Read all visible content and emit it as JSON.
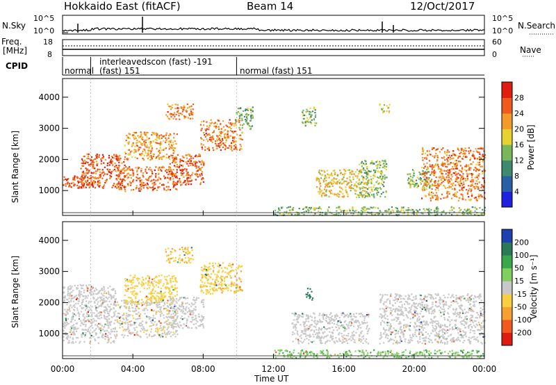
{
  "header": {
    "title": "Hokkaido East (fitACF)",
    "beam": "Beam 14",
    "date": "12/Oct/2017"
  },
  "nsky": {
    "label": "N.Sky",
    "ticks": [
      "10^5",
      "10^0"
    ]
  },
  "nsearch": {
    "label": "N.Search",
    "ticks": [
      "10^5",
      "10^0"
    ]
  },
  "freq": {
    "label": "Freq.",
    "unit": "[MHz]",
    "ticks": [
      "18",
      "8"
    ]
  },
  "nave": {
    "label": "Nave",
    "ticks": [
      "60",
      "0"
    ]
  },
  "cpid": {
    "label": "CPID",
    "segments": [
      {
        "line1": "normal",
        "line2": "",
        "start": 0.0,
        "end": 1.6
      },
      {
        "line1": "interleavedscon (fast) -191",
        "line2": "(fast) 151",
        "start": 1.6,
        "end": 9.9
      },
      {
        "line1": "",
        "line2": "normal (fast) 151",
        "start": 9.9,
        "end": 24.0
      }
    ]
  },
  "power_colorbar": {
    "label": "Power [dB]",
    "ticks": [
      "28",
      "24",
      "20",
      "16",
      "12",
      "8",
      "4"
    ],
    "colors": [
      "#1e22e0",
      "#2a5fa8",
      "#3f8a6e",
      "#78b85a",
      "#e8d232",
      "#f29a2a",
      "#ef5b1c",
      "#e01e10"
    ]
  },
  "velocity_colorbar": {
    "label": "Velocity [m s⁻¹]",
    "ticks": [
      "200",
      "100",
      "50",
      "15",
      "-15",
      "-50",
      "-100",
      "-200"
    ],
    "colors": [
      "#dd1a14",
      "#f05a20",
      "#f5a030",
      "#f7cf40",
      "#c8c8c8",
      "#80d060",
      "#3aa84a",
      "#2a7a5a",
      "#1e40b0"
    ]
  },
  "chart_data": [
    {
      "type": "heatmap",
      "title": "Power",
      "xlabel": "Time UT",
      "ylabel": "Slant Range [km]",
      "xlim": [
        0,
        24
      ],
      "ylim": [
        200,
        4600
      ],
      "x_ticks": [
        "00:00",
        "04:00",
        "08:00",
        "12:00",
        "16:00",
        "20:00",
        "00:00"
      ],
      "y_ticks": [
        "1000",
        "2000",
        "3000",
        "4000"
      ],
      "regions": [
        {
          "x": [
            0.0,
            2.0
          ],
          "y": [
            1100,
            1500
          ],
          "v": 27
        },
        {
          "x": [
            1.0,
            3.5
          ],
          "y": [
            1100,
            2200
          ],
          "v": 26
        },
        {
          "x": [
            3.0,
            6.5
          ],
          "y": [
            1000,
            1800
          ],
          "v": 25
        },
        {
          "x": [
            3.5,
            6.5
          ],
          "y": [
            2000,
            2900
          ],
          "v": 22
        },
        {
          "x": [
            5.8,
            7.4
          ],
          "y": [
            3300,
            3800
          ],
          "v": 24
        },
        {
          "x": [
            6.0,
            8.0
          ],
          "y": [
            1200,
            2200
          ],
          "v": 26
        },
        {
          "x": [
            7.8,
            10.2
          ],
          "y": [
            2300,
            3300
          ],
          "v": 24
        },
        {
          "x": [
            9.8,
            10.8
          ],
          "y": [
            3000,
            3700
          ],
          "v": 13
        },
        {
          "x": [
            13.6,
            14.4
          ],
          "y": [
            3100,
            3700
          ],
          "v": 14
        },
        {
          "x": [
            14.4,
            17.4
          ],
          "y": [
            800,
            1700
          ],
          "v": 19
        },
        {
          "x": [
            16.8,
            18.4
          ],
          "y": [
            800,
            2000
          ],
          "v": 14
        },
        {
          "x": [
            18.0,
            18.6
          ],
          "y": [
            3500,
            3800
          ],
          "v": 16
        },
        {
          "x": [
            19.6,
            21.0
          ],
          "y": [
            1100,
            1700
          ],
          "v": 14
        },
        {
          "x": [
            20.4,
            24.0
          ],
          "y": [
            700,
            2400
          ],
          "v": 24
        },
        {
          "x": [
            12.0,
            24.0
          ],
          "y": [
            220,
            500
          ],
          "v": 14
        }
      ]
    },
    {
      "type": "heatmap",
      "title": "Velocity",
      "xlabel": "Time UT",
      "ylabel": "Slant Range [km]",
      "xlim": [
        0,
        24
      ],
      "ylim": [
        200,
        4600
      ],
      "x_ticks": [
        "00:00",
        "04:00",
        "08:00",
        "12:00",
        "16:00",
        "20:00",
        "00:00"
      ],
      "y_ticks": [
        "1000",
        "2000",
        "3000",
        "4000"
      ],
      "regions": [
        {
          "x": [
            0.0,
            3.0
          ],
          "y": [
            700,
            2600
          ],
          "v": 0
        },
        {
          "x": [
            3.0,
            6.5
          ],
          "y": [
            900,
            2100
          ],
          "v": -5
        },
        {
          "x": [
            3.5,
            6.5
          ],
          "y": [
            2000,
            2900
          ],
          "v": -35
        },
        {
          "x": [
            5.8,
            7.4
          ],
          "y": [
            3300,
            3800
          ],
          "v": -45
        },
        {
          "x": [
            6.0,
            8.0
          ],
          "y": [
            1200,
            2200
          ],
          "v": 0
        },
        {
          "x": [
            7.8,
            10.2
          ],
          "y": [
            2300,
            3300
          ],
          "v": -40
        },
        {
          "x": [
            13.8,
            14.2
          ],
          "y": [
            2100,
            2500
          ],
          "v": 150
        },
        {
          "x": [
            13.0,
            17.4
          ],
          "y": [
            700,
            1700
          ],
          "v": 0
        },
        {
          "x": [
            18.0,
            24.0
          ],
          "y": [
            700,
            2300
          ],
          "v": 0
        },
        {
          "x": [
            12.0,
            24.0
          ],
          "y": [
            250,
            500
          ],
          "v": 40
        }
      ]
    }
  ]
}
